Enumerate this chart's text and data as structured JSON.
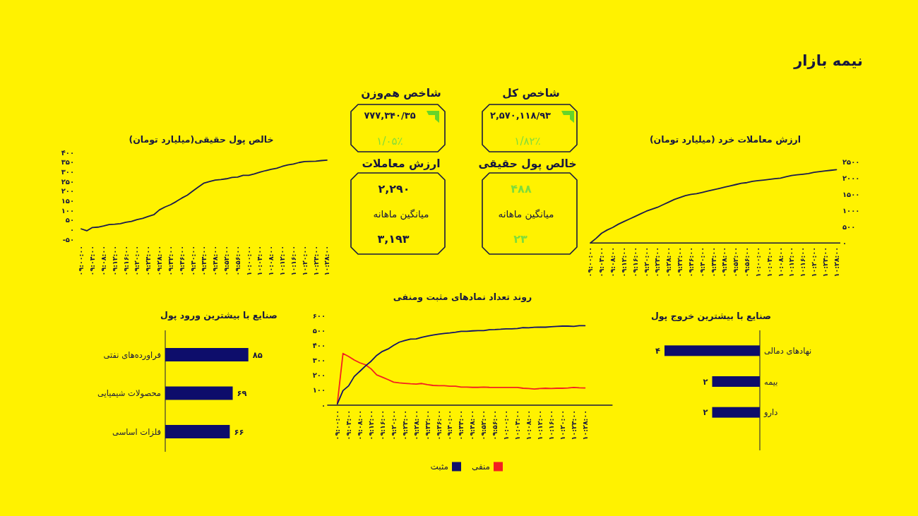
{
  "chart_data": [
    {
      "type": "other",
      "title": "نیمه بازار",
      "annotations": [
        "شاخص کل",
        "۲,۵۷۰,۱۱۸/۹۳",
        "۱/۸۲٪",
        "شاخص هم‌وزن",
        "۷۷۷,۳۴۰/۳۵",
        "۱/۰۵٪",
        "خالص پول حقیقی",
        "۴۸۸",
        "میانگین ماهانه",
        "۲۳",
        "ارزش معاملات",
        "۲,۲۹۰",
        "میانگین ماهانه",
        "۳,۱۹۳"
      ]
    },
    {
      "type": "line",
      "title": "ارزش معاملات خرد (میلیارد تومان)",
      "x": [
        9,
        9.0333,
        9.0667,
        9.1,
        9.1333,
        9.1667,
        9.2,
        9.2333,
        9.2667,
        9.3,
        9.3333,
        9.3667,
        9.4,
        9.4333,
        9.4667,
        9.5,
        9.5333,
        9.5667,
        9.6,
        9.6333,
        9.6667,
        9.7,
        9.7333,
        9.7667,
        9.8,
        9.8333,
        9.8667,
        9.9,
        9.9333,
        9.9667,
        10,
        10.0333,
        10.0667,
        10.1,
        10.1333,
        10.1667,
        10.2,
        10.2333,
        10.2667,
        10.3,
        10.3333,
        10.3667,
        10.4,
        10.4333,
        10.4667
      ],
      "series": [
        {
          "color": "#1a1a4e",
          "values": [
            0,
            140,
            300,
            400,
            480,
            580,
            660,
            740,
            820,
            900,
            980,
            1040,
            1100,
            1180,
            1260,
            1340,
            1400,
            1460,
            1500,
            1520,
            1560,
            1600,
            1640,
            1680,
            1720,
            1760,
            1800,
            1840,
            1860,
            1900,
            1920,
            1940,
            1960,
            1980,
            2000,
            2040,
            2080,
            2100,
            2120,
            2140,
            2180,
            2200,
            2220,
            2240,
            2260
          ]
        }
      ],
      "xlim": [
        9,
        10.49
      ],
      "ylim": [
        0,
        2500
      ],
      "xticks": [
        {
          "value": 9,
          "label": "۰۹:۰۰:۰۰"
        },
        {
          "value": 9.0667,
          "label": "۰۹:۰۴:۰۰"
        },
        {
          "value": 9.1333,
          "label": "۰۹:۰۸:۰۰"
        },
        {
          "value": 9.2,
          "label": "۰۹:۱۲:۰۰"
        },
        {
          "value": 9.2667,
          "label": "۰۹:۱۶:۰۰"
        },
        {
          "value": 9.3333,
          "label": "۰۹:۲۰:۰۰"
        },
        {
          "value": 9.4,
          "label": "۰۹:۲۴:۰۰"
        },
        {
          "value": 9.4667,
          "label": "۰۹:۲۸:۰۰"
        },
        {
          "value": 9.5333,
          "label": "۰۹:۳۲:۰۰"
        },
        {
          "value": 9.6,
          "label": "۰۹:۳۶:۰۰"
        },
        {
          "value": 9.6667,
          "label": "۰۹:۴۰:۰۰"
        },
        {
          "value": 9.7333,
          "label": "۰۹:۴۴:۰۰"
        },
        {
          "value": 9.8,
          "label": "۰۹:۴۸:۰۰"
        },
        {
          "value": 9.8667,
          "label": "۰۹:۵۲:۰۰"
        },
        {
          "value": 9.9333,
          "label": "۰۹:۵۶:۰۰"
        },
        {
          "value": 10,
          "label": "۱۰:۰۰:۰۰"
        },
        {
          "value": 10.0667,
          "label": "۱۰:۰۴:۰۰"
        },
        {
          "value": 10.1333,
          "label": "۱۰:۰۸:۰۰"
        },
        {
          "value": 10.2,
          "label": "۱۰:۱۲:۰۰"
        },
        {
          "value": 10.2667,
          "label": "۱۰:۱۶:۰۰"
        },
        {
          "value": 10.3333,
          "label": "۱۰:۲۰:۰۰"
        },
        {
          "value": 10.4,
          "label": "۱۰:۲۴:۰۰"
        },
        {
          "value": 10.4667,
          "label": "۱۰:۲۸:۰۰"
        }
      ],
      "yticks": [
        {
          "value": 0,
          "label": "۰"
        },
        {
          "value": 500,
          "label": "۵۰۰"
        },
        {
          "value": 1000,
          "label": "۱۰۰۰"
        },
        {
          "value": 1500,
          "label": "۱۵۰۰"
        },
        {
          "value": 2000,
          "label": "۲۰۰۰"
        },
        {
          "value": 2500,
          "label": "۲۵۰۰"
        }
      ]
    },
    {
      "type": "line",
      "title": "خالص پول حقیقی(میلیارد تومان)",
      "x": [
        9,
        9.0333,
        9.0667,
        9.1,
        9.1333,
        9.1667,
        9.2,
        9.2333,
        9.2667,
        9.3,
        9.3333,
        9.3667,
        9.4,
        9.4333,
        9.4667,
        9.5,
        9.5333,
        9.5667,
        9.6,
        9.6333,
        9.6667,
        9.7,
        9.7333,
        9.7667,
        9.8,
        9.8333,
        9.8667,
        9.9,
        9.9333,
        9.9667,
        10,
        10.0333,
        10.0667,
        10.1,
        10.1333,
        10.1667,
        10.2,
        10.2333,
        10.2667,
        10.3,
        10.3333,
        10.3667,
        10.4,
        10.4333,
        10.4667
      ],
      "series": [
        {
          "color": "#1a1a4e",
          "values": [
            5,
            -5,
            12,
            14,
            20,
            27,
            29,
            32,
            39,
            44,
            53,
            59,
            69,
            78,
            103,
            118,
            130,
            146,
            164,
            179,
            201,
            222,
            242,
            250,
            257,
            260,
            264,
            271,
            273,
            282,
            282,
            289,
            298,
            306,
            313,
            318,
            328,
            336,
            340,
            348,
            353,
            354,
            355,
            358,
            360
          ]
        }
      ],
      "xlim": [
        9,
        10.4667
      ],
      "ylim": [
        -50,
        400
      ],
      "xticks": [
        {
          "value": 9,
          "label": "۰۹:۰۰:۰۰"
        },
        {
          "value": 9.0667,
          "label": "۰۹:۰۴:۰۰"
        },
        {
          "value": 9.1333,
          "label": "۰۹:۰۸:۰۰"
        },
        {
          "value": 9.2,
          "label": "۰۹:۱۲:۰۰"
        },
        {
          "value": 9.2667,
          "label": "۰۹:۱۶:۰۰"
        },
        {
          "value": 9.3333,
          "label": "۰۹:۲۰:۰۰"
        },
        {
          "value": 9.4,
          "label": "۰۹:۲۴:۰۰"
        },
        {
          "value": 9.4667,
          "label": "۰۹:۲۸:۰۰"
        },
        {
          "value": 9.5333,
          "label": "۰۹:۳۲:۰۰"
        },
        {
          "value": 9.6,
          "label": "۰۹:۳۶:۰۰"
        },
        {
          "value": 9.6667,
          "label": "۰۹:۴۰:۰۰"
        },
        {
          "value": 9.7333,
          "label": "۰۹:۴۴:۰۰"
        },
        {
          "value": 9.8,
          "label": "۰۹:۴۸:۰۰"
        },
        {
          "value": 9.8667,
          "label": "۰۹:۵۲:۰۰"
        },
        {
          "value": 9.9333,
          "label": "۰۹:۵۶:۰۰"
        },
        {
          "value": 10,
          "label": "۱۰:۰۰:۰۰"
        },
        {
          "value": 10.0667,
          "label": "۱۰:۰۴:۰۰"
        },
        {
          "value": 10.1333,
          "label": "۱۰:۰۸:۰۰"
        },
        {
          "value": 10.2,
          "label": "۱۰:۱۲:۰۰"
        },
        {
          "value": 10.2667,
          "label": "۱۰:۱۶:۰۰"
        },
        {
          "value": 10.3333,
          "label": "۱۰:۲۰:۰۰"
        },
        {
          "value": 10.4,
          "label": "۱۰:۲۴:۰۰"
        },
        {
          "value": 10.4667,
          "label": "۱۰:۲۸:۰۰"
        }
      ],
      "yticks": [
        {
          "value": -50,
          "label": "-۵۰"
        },
        {
          "value": 0,
          "label": "۰"
        },
        {
          "value": 50,
          "label": "۵۰"
        },
        {
          "value": 100,
          "label": "۱۰۰"
        },
        {
          "value": 150,
          "label": "۱۵۰"
        },
        {
          "value": 200,
          "label": "۲۰۰"
        },
        {
          "value": 250,
          "label": "۲۵۰"
        },
        {
          "value": 300,
          "label": "۳۰۰"
        },
        {
          "value": 350,
          "label": "۳۵۰"
        },
        {
          "value": 400,
          "label": "۴۰۰"
        }
      ]
    },
    {
      "type": "bar",
      "orientation": "horizontal",
      "title": "صنایع با بیشترین خروج پول",
      "categories": [
        "نهادهای دمالی",
        "بیمه",
        "دارو"
      ],
      "values": [
        4,
        2,
        2
      ],
      "value_labels": [
        "۴",
        "۲",
        "۲"
      ],
      "color": "#0d0d6b",
      "xlim": [
        4,
        0
      ],
      "tick_labels": "y"
    },
    {
      "type": "line",
      "title": "روند تعداد نمادهای مثبت ومنفی",
      "x": [
        9,
        9.0333,
        9.0667,
        9.1,
        9.1333,
        9.1667,
        9.2,
        9.2333,
        9.2667,
        9.3,
        9.3333,
        9.3667,
        9.4,
        9.4333,
        9.4667,
        9.5,
        9.5333,
        9.5667,
        9.6,
        9.6333,
        9.6667,
        9.7,
        9.7333,
        9.7667,
        9.8,
        9.8333,
        9.8667,
        9.9,
        9.9333,
        9.9667,
        10,
        10.0333,
        10.0667,
        10.1,
        10.1333,
        10.1667,
        10.2,
        10.2333,
        10.2667,
        10.3,
        10.3333,
        10.3667,
        10.4,
        10.4333,
        10.4667
      ],
      "series": [
        {
          "name": "منفی",
          "color": "#f42020",
          "values": [
            13,
            348,
            328,
            304,
            285,
            272,
            244,
            204,
            188,
            172,
            155,
            150,
            147,
            144,
            142,
            146,
            138,
            133,
            131,
            131,
            128,
            128,
            122,
            122,
            120,
            120,
            122,
            120,
            119,
            119,
            119,
            119,
            119,
            114,
            112,
            109,
            112,
            114,
            112,
            114,
            114,
            116,
            119,
            117,
            116
          ]
        },
        {
          "name": "مثبت",
          "color": "#10106a",
          "values": [
            9,
            98,
            130,
            193,
            228,
            264,
            296,
            335,
            362,
            378,
            403,
            424,
            435,
            445,
            446,
            457,
            465,
            472,
            478,
            483,
            486,
            491,
            497,
            497,
            500,
            502,
            502,
            508,
            509,
            511,
            514,
            514,
            516,
            522,
            521,
            524,
            525,
            525,
            528,
            530,
            532,
            532,
            530,
            535,
            535
          ]
        }
      ],
      "xlim": [
        8.94,
        10.63
      ],
      "ylim": [
        0,
        600
      ],
      "xticks": [
        {
          "value": 9,
          "label": "۰۹:۰۰:۰۰"
        },
        {
          "value": 9.0667,
          "label": "۰۹:۰۴:۰۰"
        },
        {
          "value": 9.1333,
          "label": "۰۹:۰۸:۰۰"
        },
        {
          "value": 9.2,
          "label": "۰۹:۱۲:۰۰"
        },
        {
          "value": 9.2667,
          "label": "۰۹:۱۶:۰۰"
        },
        {
          "value": 9.3333,
          "label": "۰۹:۲۰:۰۰"
        },
        {
          "value": 9.4,
          "label": "۰۹:۲۴:۰۰"
        },
        {
          "value": 9.4667,
          "label": "۰۹:۲۸:۰۰"
        },
        {
          "value": 9.5333,
          "label": "۰۹:۳۲:۰۰"
        },
        {
          "value": 9.6,
          "label": "۰۹:۳۶:۰۰"
        },
        {
          "value": 9.6667,
          "label": "۰۹:۴۰:۰۰"
        },
        {
          "value": 9.7333,
          "label": "۰۹:۴۴:۰۰"
        },
        {
          "value": 9.8,
          "label": "۰۹:۴۸:۰۰"
        },
        {
          "value": 9.8667,
          "label": "۰۹:۵۲:۰۰"
        },
        {
          "value": 9.9333,
          "label": "۰۹:۵۶:۰۰"
        },
        {
          "value": 10,
          "label": "۱۰:۰۰:۰۰"
        },
        {
          "value": 10.0667,
          "label": "۱۰:۰۴:۰۰"
        },
        {
          "value": 10.1333,
          "label": "۱۰:۰۸:۰۰"
        },
        {
          "value": 10.2,
          "label": "۱۰:۱۲:۰۰"
        },
        {
          "value": 10.2667,
          "label": "۱۰:۱۶:۰۰"
        },
        {
          "value": 10.3333,
          "label": "۱۰:۲۰:۰۰"
        },
        {
          "value": 10.4,
          "label": "۱۰:۲۴:۰۰"
        },
        {
          "value": 10.4667,
          "label": "۱۰:۲۸:۰۰"
        }
      ],
      "yticks": [
        {
          "value": 0,
          "label": "۰"
        },
        {
          "value": 100,
          "label": "۱۰۰"
        },
        {
          "value": 200,
          "label": "۲۰۰"
        },
        {
          "value": 300,
          "label": "۳۰۰"
        },
        {
          "value": 400,
          "label": "۴۰۰"
        },
        {
          "value": 500,
          "label": "۵۰۰"
        },
        {
          "value": 600,
          "label": "۶۰۰"
        }
      ],
      "legend": "bottom"
    },
    {
      "type": "bar",
      "orientation": "horizontal",
      "title": "صنایع با بیشترین ورود پول",
      "categories": [
        "فراورده‌های نفتی",
        "محصولات شیمیایی",
        "فلزات اساسی"
      ],
      "values": [
        85,
        69,
        66
      ],
      "value_labels": [
        "۸۵",
        "۶۹",
        "۶۶"
      ],
      "color": "#0d0d6b",
      "xlim": [
        0,
        85
      ],
      "tick_labels": "y"
    }
  ]
}
